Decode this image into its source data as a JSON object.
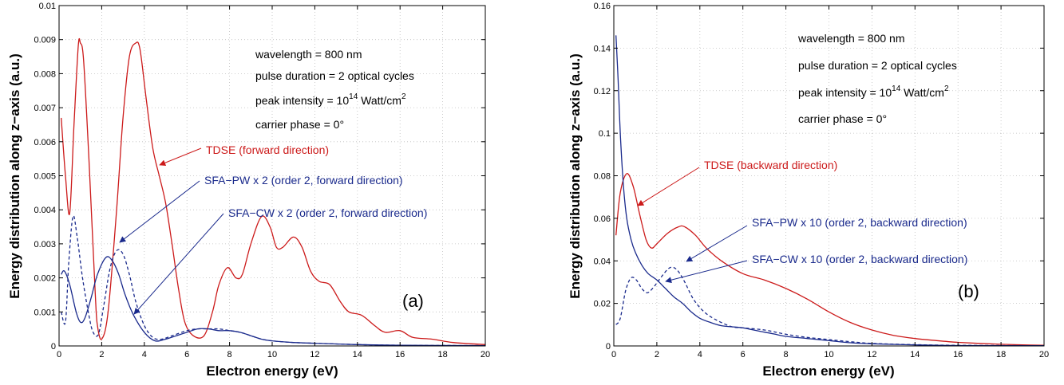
{
  "colors": {
    "tdse": "#cc1a1a",
    "sfa": "#1a2a8c",
    "text": "#000000"
  },
  "chart_data": [
    {
      "type": "line",
      "panel_label": "(a)",
      "xlabel": "Electron energy (eV)",
      "ylabel": "Energy distribution along z−axis (a.u.)",
      "xlim": [
        0,
        20
      ],
      "ylim": [
        0,
        0.01
      ],
      "x_ticks": [
        "0",
        "2",
        "4",
        "6",
        "8",
        "10",
        "12",
        "14",
        "16",
        "18",
        "20"
      ],
      "y_ticks": [
        "0",
        "0.001",
        "0.002",
        "0.003",
        "0.004",
        "0.005",
        "0.006",
        "0.007",
        "0.008",
        "0.009",
        "0.01"
      ],
      "grid": true,
      "info": {
        "line1": "wavelength = 800 nm",
        "line2": "pulse duration = 2 optical cycles",
        "line3_pre": "peak intensity = 10",
        "line3_sup1": "14",
        "line3_mid": " Watt/cm",
        "line3_sup2": "2",
        "line4": "carrier phase = 0°"
      },
      "annotations": {
        "tdse": "TDSE (forward direction)",
        "pw": "SFA−PW x 2 (order 2, forward direction)",
        "cw": "SFA−CW x 2 (order 2, forward direction)"
      },
      "series": [
        {
          "key": "tdse",
          "style": "solid",
          "color": "#cc1a1a",
          "points": [
            [
              0.1,
              0.0067
            ],
            [
              0.3,
              0.005
            ],
            [
              0.5,
              0.0039
            ],
            [
              0.7,
              0.0065
            ],
            [
              0.9,
              0.0088
            ],
            [
              1.0,
              0.0089
            ],
            [
              1.15,
              0.0084
            ],
            [
              1.4,
              0.0055
            ],
            [
              1.7,
              0.0015
            ],
            [
              1.8,
              0.0006
            ],
            [
              2.0,
              0.0002
            ],
            [
              2.3,
              0.001
            ],
            [
              2.7,
              0.004
            ],
            [
              3.0,
              0.0067
            ],
            [
              3.3,
              0.0085
            ],
            [
              3.6,
              0.0089
            ],
            [
              3.8,
              0.0087
            ],
            [
              4.1,
              0.0072
            ],
            [
              4.4,
              0.0058
            ],
            [
              4.7,
              0.005
            ],
            [
              5.0,
              0.0042
            ],
            [
              5.3,
              0.003
            ],
            [
              5.6,
              0.0017
            ],
            [
              5.9,
              0.0007
            ],
            [
              6.3,
              0.0003
            ],
            [
              6.8,
              0.0003
            ],
            [
              7.2,
              0.001
            ],
            [
              7.5,
              0.0018
            ],
            [
              7.9,
              0.0023
            ],
            [
              8.3,
              0.002
            ],
            [
              8.6,
              0.0021
            ],
            [
              9.0,
              0.003
            ],
            [
              9.5,
              0.0038
            ],
            [
              9.9,
              0.0035
            ],
            [
              10.2,
              0.0029
            ],
            [
              10.5,
              0.0029
            ],
            [
              11.0,
              0.0032
            ],
            [
              11.4,
              0.0029
            ],
            [
              11.8,
              0.0022
            ],
            [
              12.2,
              0.0019
            ],
            [
              12.7,
              0.0018
            ],
            [
              13.2,
              0.0013
            ],
            [
              13.6,
              0.001
            ],
            [
              14.2,
              0.0009
            ],
            [
              14.8,
              0.0006
            ],
            [
              15.3,
              0.0004
            ],
            [
              16.0,
              0.00045
            ],
            [
              16.6,
              0.00025
            ],
            [
              17.5,
              0.0002
            ],
            [
              18.5,
              0.0001
            ],
            [
              20,
              4e-05
            ]
          ]
        },
        {
          "key": "pw",
          "style": "solid",
          "color": "#1a2a8c",
          "points": [
            [
              0.1,
              0.0021
            ],
            [
              0.25,
              0.0022
            ],
            [
              0.5,
              0.0018
            ],
            [
              0.8,
              0.001
            ],
            [
              1.0,
              0.0007
            ],
            [
              1.2,
              0.0008
            ],
            [
              1.5,
              0.0014
            ],
            [
              1.8,
              0.0021
            ],
            [
              2.2,
              0.0026
            ],
            [
              2.5,
              0.0025
            ],
            [
              2.8,
              0.0021
            ],
            [
              3.1,
              0.0015
            ],
            [
              3.5,
              0.0009
            ],
            [
              4.0,
              0.0004
            ],
            [
              4.5,
              0.00015
            ],
            [
              5.0,
              0.0002
            ],
            [
              5.5,
              0.0003
            ],
            [
              6.0,
              0.0004
            ],
            [
              6.5,
              0.0005
            ],
            [
              7.0,
              0.0005
            ],
            [
              7.5,
              0.00045
            ],
            [
              8.0,
              0.00045
            ],
            [
              8.5,
              0.0004
            ],
            [
              9.0,
              0.0003
            ],
            [
              9.5,
              0.0002
            ],
            [
              10.0,
              0.00015
            ],
            [
              11,
              0.0001
            ],
            [
              12,
              8e-05
            ],
            [
              14,
              4e-05
            ],
            [
              16,
              2e-05
            ],
            [
              20,
              1e-05
            ]
          ]
        },
        {
          "key": "cw",
          "style": "dashed",
          "color": "#1a2a8c",
          "points": [
            [
              0.1,
              0.001
            ],
            [
              0.3,
              0.0007
            ],
            [
              0.45,
              0.0024
            ],
            [
              0.65,
              0.0038
            ],
            [
              0.85,
              0.0032
            ],
            [
              1.1,
              0.002
            ],
            [
              1.4,
              0.0009
            ],
            [
              1.6,
              0.0004
            ],
            [
              1.85,
              0.00035
            ],
            [
              2.1,
              0.0012
            ],
            [
              2.4,
              0.0023
            ],
            [
              2.7,
              0.0028
            ],
            [
              3.0,
              0.0027
            ],
            [
              3.3,
              0.0021
            ],
            [
              3.6,
              0.0013
            ],
            [
              4.0,
              0.0006
            ],
            [
              4.4,
              0.00025
            ],
            [
              4.8,
              0.0002
            ],
            [
              5.3,
              0.0003
            ],
            [
              6.0,
              0.00045
            ],
            [
              6.5,
              0.0005
            ],
            [
              7.0,
              0.0005
            ],
            [
              7.5,
              0.0005
            ],
            [
              8.0,
              0.00045
            ],
            [
              8.5,
              0.0004
            ],
            [
              9.0,
              0.0003
            ],
            [
              9.5,
              0.0002
            ],
            [
              10.0,
              0.00015
            ],
            [
              11,
              0.0001
            ],
            [
              12,
              8e-05
            ],
            [
              14,
              4e-05
            ],
            [
              16,
              2e-05
            ],
            [
              20,
              1e-05
            ]
          ]
        }
      ]
    },
    {
      "type": "line",
      "panel_label": "(b)",
      "xlabel": "Electron energy (eV)",
      "ylabel": "Energy distribution along z−axis (a.u.)",
      "xlim": [
        0,
        20
      ],
      "ylim": [
        0,
        0.16
      ],
      "x_ticks": [
        "0",
        "2",
        "4",
        "6",
        "8",
        "10",
        "12",
        "14",
        "16",
        "18",
        "20"
      ],
      "y_ticks": [
        "0",
        "0.02",
        "0.04",
        "0.06",
        "0.08",
        "0.1",
        "0.12",
        "0.14",
        "0.16"
      ],
      "grid": true,
      "info": {
        "line1": "wavelength = 800 nm",
        "line2": "pulse duration = 2 optical cycles",
        "line3_pre": "peak intensity = 10",
        "line3_sup1": "14",
        "line3_mid": " Watt/cm",
        "line3_sup2": "2",
        "line4": "carrier phase = 0°"
      },
      "annotations": {
        "tdse": "TDSE (backward direction)",
        "pw": "SFA−PW x 10 (order 2, backward direction)",
        "cw": "SFA−CW x 10 (order 2, backward direction)"
      },
      "series": [
        {
          "key": "tdse",
          "style": "solid",
          "color": "#cc1a1a",
          "points": [
            [
              0.1,
              0.052
            ],
            [
              0.3,
              0.072
            ],
            [
              0.6,
              0.081
            ],
            [
              0.9,
              0.075
            ],
            [
              1.2,
              0.062
            ],
            [
              1.5,
              0.05
            ],
            [
              1.75,
              0.046
            ],
            [
              2.0,
              0.048
            ],
            [
              2.5,
              0.053
            ],
            [
              3.0,
              0.056
            ],
            [
              3.3,
              0.056
            ],
            [
              3.8,
              0.052
            ],
            [
              4.3,
              0.046
            ],
            [
              5.0,
              0.04
            ],
            [
              6.0,
              0.034
            ],
            [
              7.0,
              0.031
            ],
            [
              8.0,
              0.027
            ],
            [
              9.0,
              0.022
            ],
            [
              10.0,
              0.016
            ],
            [
              11.0,
              0.011
            ],
            [
              12.0,
              0.0075
            ],
            [
              13.0,
              0.005
            ],
            [
              14.0,
              0.0035
            ],
            [
              15.0,
              0.0025
            ],
            [
              16.0,
              0.0017
            ],
            [
              17.0,
              0.0012
            ],
            [
              18.0,
              0.0008
            ],
            [
              19.0,
              0.0005
            ],
            [
              20,
              0.0003
            ]
          ]
        },
        {
          "key": "pw",
          "style": "solid",
          "color": "#1a2a8c",
          "points": [
            [
              0.1,
              0.146
            ],
            [
              0.2,
              0.125
            ],
            [
              0.3,
              0.1
            ],
            [
              0.45,
              0.075
            ],
            [
              0.6,
              0.06
            ],
            [
              0.8,
              0.05
            ],
            [
              1.0,
              0.044
            ],
            [
              1.3,
              0.038
            ],
            [
              1.6,
              0.034
            ],
            [
              2.0,
              0.031
            ],
            [
              2.4,
              0.027
            ],
            [
              2.8,
              0.023
            ],
            [
              3.2,
              0.02
            ],
            [
              3.6,
              0.016
            ],
            [
              4.0,
              0.013
            ],
            [
              4.5,
              0.011
            ],
            [
              5.0,
              0.0095
            ],
            [
              5.5,
              0.009
            ],
            [
              6.0,
              0.0085
            ],
            [
              6.5,
              0.0075
            ],
            [
              7.0,
              0.0065
            ],
            [
              7.5,
              0.0055
            ],
            [
              8.0,
              0.0045
            ],
            [
              9.0,
              0.0035
            ],
            [
              10.0,
              0.0025
            ],
            [
              11,
              0.0015
            ],
            [
              12,
              0.001
            ],
            [
              14,
              0.0005
            ],
            [
              16,
              0.0002
            ],
            [
              20,
              0.0001
            ]
          ]
        },
        {
          "key": "cw",
          "style": "dashed",
          "color": "#1a2a8c",
          "points": [
            [
              0.1,
              0.01
            ],
            [
              0.3,
              0.013
            ],
            [
              0.55,
              0.026
            ],
            [
              0.8,
              0.032
            ],
            [
              1.05,
              0.031
            ],
            [
              1.3,
              0.027
            ],
            [
              1.55,
              0.025
            ],
            [
              1.8,
              0.027
            ],
            [
              2.1,
              0.031
            ],
            [
              2.5,
              0.036
            ],
            [
              2.75,
              0.037
            ],
            [
              3.0,
              0.035
            ],
            [
              3.3,
              0.03
            ],
            [
              3.7,
              0.022
            ],
            [
              4.2,
              0.016
            ],
            [
              4.8,
              0.012
            ],
            [
              5.5,
              0.009
            ],
            [
              6.0,
              0.0085
            ],
            [
              7.0,
              0.0075
            ],
            [
              8.0,
              0.0055
            ],
            [
              9.0,
              0.004
            ],
            [
              10.0,
              0.003
            ],
            [
              11,
              0.002
            ],
            [
              12,
              0.0012
            ],
            [
              14,
              0.0006
            ],
            [
              16,
              0.0003
            ],
            [
              20,
              0.0001
            ]
          ]
        }
      ]
    }
  ]
}
